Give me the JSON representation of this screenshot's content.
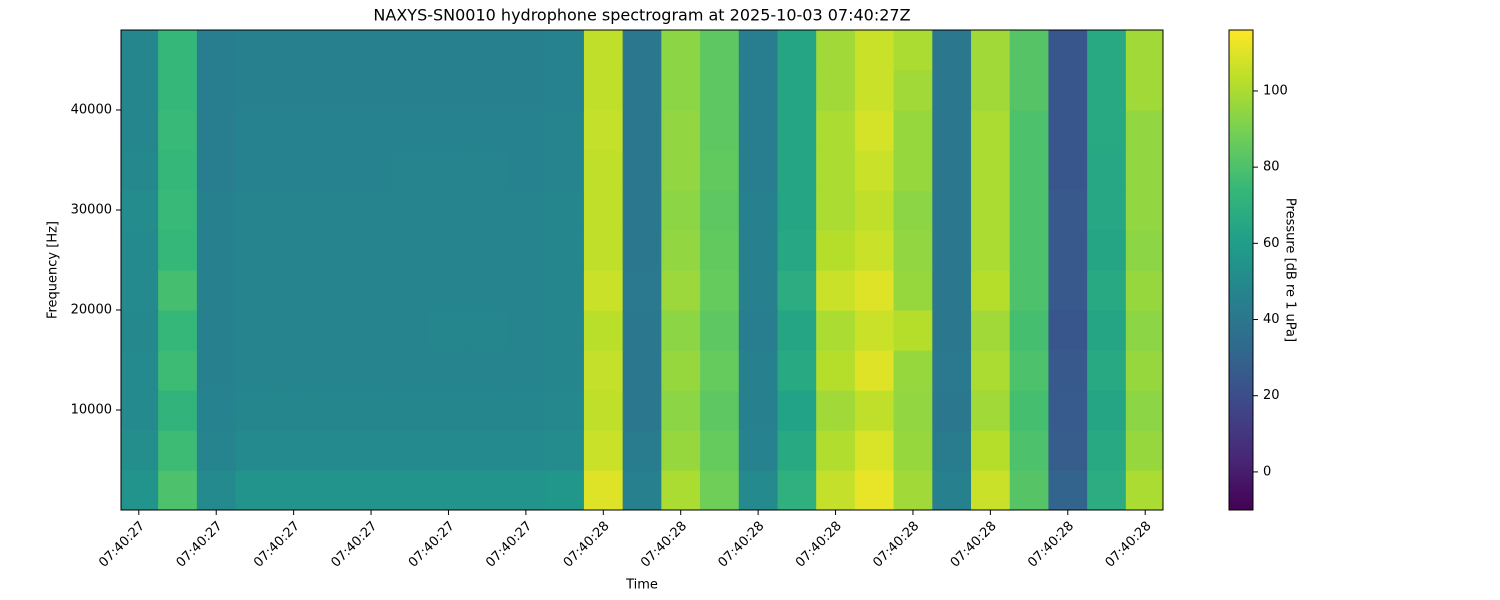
{
  "chart_data": {
    "type": "heatmap",
    "title": "NAXYS-SN0010 hydrophone spectrogram at 2025-10-03 07:40:27Z",
    "xlabel": "Time",
    "ylabel": "Frequency [Hz]",
    "colorbar_label": "Pressure [dB re 1 uPa]",
    "colormap": "viridis",
    "x": [
      0,
      0.5,
      1,
      1.5,
      2,
      2.5,
      3,
      3.5,
      4,
      4.5,
      5,
      5.5,
      6,
      6.5,
      7,
      7.5,
      8,
      8.5,
      9,
      9.5,
      10,
      10.5,
      11,
      11.5,
      12,
      12.5,
      13
    ],
    "y": [
      2000,
      6000,
      10000,
      14000,
      18000,
      22000,
      26000,
      30000,
      34000,
      38000,
      42000,
      46000
    ],
    "z": [
      [
        55,
        80,
        50,
        55,
        55,
        55,
        55,
        55,
        55,
        55,
        55,
        56,
        110,
        45,
        100,
        88,
        50,
        70,
        105,
        112,
        98,
        45,
        106,
        82,
        30,
        68,
        100
      ],
      [
        52,
        76,
        47,
        50,
        50,
        50,
        50,
        50,
        50,
        50,
        50,
        51,
        106,
        42,
        96,
        86,
        46,
        66,
        101,
        109,
        96,
        42,
        102,
        80,
        27,
        66,
        96
      ],
      [
        50,
        72,
        46,
        48,
        48,
        48,
        48,
        48,
        48,
        48,
        48,
        49,
        104,
        40,
        94,
        84,
        45,
        62,
        98,
        104,
        95,
        40,
        98,
        78,
        26,
        64,
        94
      ],
      [
        50,
        76,
        45,
        47,
        47,
        47,
        47,
        47,
        47,
        47,
        47,
        48,
        105,
        40,
        96,
        86,
        45,
        66,
        102,
        110,
        96,
        41,
        100,
        80,
        25,
        66,
        96
      ],
      [
        49,
        74,
        45,
        47,
        47,
        47,
        47,
        47,
        48,
        48,
        47,
        48,
        103,
        40,
        94,
        84,
        44,
        64,
        100,
        106,
        102,
        40,
        98,
        78,
        24,
        64,
        94
      ],
      [
        50,
        78,
        45,
        47,
        47,
        47,
        47,
        47,
        47,
        47,
        47,
        48,
        106,
        41,
        97,
        86,
        45,
        68,
        106,
        110,
        96,
        40,
        102,
        80,
        25,
        66,
        96
      ],
      [
        50,
        74,
        45,
        47,
        47,
        47,
        47,
        47,
        47,
        47,
        47,
        48,
        104,
        40,
        95,
        85,
        45,
        65,
        102,
        106,
        95,
        40,
        100,
        80,
        25,
        64,
        94
      ],
      [
        51,
        75,
        45,
        47,
        47,
        47,
        47,
        47,
        47,
        47,
        47,
        48,
        104,
        40,
        94,
        84,
        45,
        64,
        100,
        104,
        94,
        40,
        100,
        80,
        25,
        65,
        95
      ],
      [
        49,
        74,
        44,
        46,
        46,
        46,
        46,
        47,
        47,
        47,
        46,
        47,
        104,
        40,
        95,
        85,
        44,
        64,
        100,
        106,
        96,
        40,
        100,
        80,
        24,
        65,
        95
      ],
      [
        48,
        75,
        44,
        46,
        46,
        46,
        46,
        46,
        46,
        46,
        46,
        47,
        105,
        40,
        95,
        84,
        44,
        64,
        100,
        108,
        96,
        40,
        100,
        80,
        24,
        66,
        95
      ],
      [
        48,
        74,
        44,
        45,
        45,
        45,
        45,
        45,
        45,
        45,
        45,
        46,
        104,
        40,
        94,
        84,
        44,
        64,
        98,
        106,
        98,
        40,
        98,
        82,
        24,
        66,
        98
      ],
      [
        48,
        74,
        44,
        45,
        45,
        45,
        45,
        45,
        45,
        45,
        45,
        46,
        104,
        40,
        94,
        84,
        44,
        64,
        98,
        106,
        100,
        40,
        98,
        82,
        24,
        66,
        98
      ]
    ],
    "xlim": [
      -0.23,
      13.23
    ],
    "xticks": [
      {
        "value": 0,
        "label": "07:40:27"
      },
      {
        "value": 1,
        "label": "07:40:27"
      },
      {
        "value": 2,
        "label": "07:40:27"
      },
      {
        "value": 3,
        "label": "07:40:27"
      },
      {
        "value": 4,
        "label": "07:40:27"
      },
      {
        "value": 5,
        "label": "07:40:27"
      },
      {
        "value": 6,
        "label": "07:40:28"
      },
      {
        "value": 7,
        "label": "07:40:28"
      },
      {
        "value": 8,
        "label": "07:40:28"
      },
      {
        "value": 9,
        "label": "07:40:28"
      },
      {
        "value": 10,
        "label": "07:40:28"
      },
      {
        "value": 11,
        "label": "07:40:28"
      },
      {
        "value": 12,
        "label": "07:40:28"
      },
      {
        "value": 13,
        "label": "07:40:28"
      }
    ],
    "ylim": [
      0,
      48000
    ],
    "yticks": [
      10000,
      20000,
      30000,
      40000
    ],
    "clim": [
      -10,
      116
    ],
    "cticks": [
      0,
      20,
      40,
      60,
      80,
      100
    ]
  }
}
